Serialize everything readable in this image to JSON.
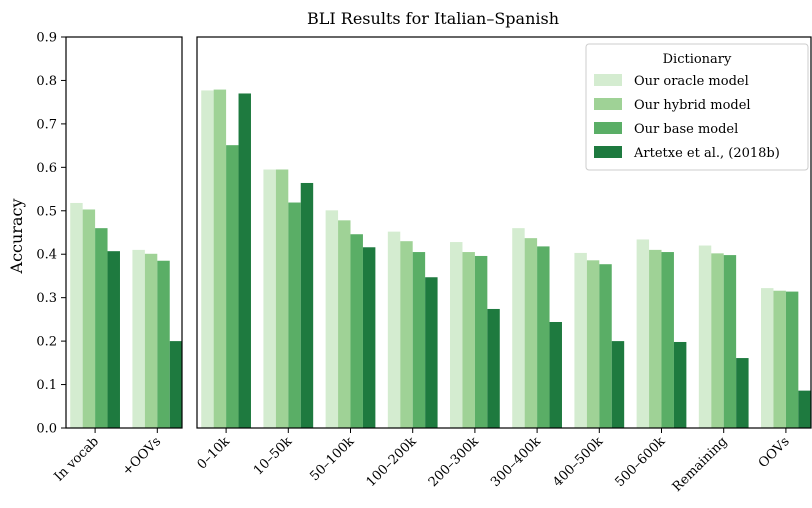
{
  "chart_data": {
    "type": "bar",
    "title": "BLI Results for Italian–Spanish",
    "ylabel": "Accuracy",
    "xlabel": "",
    "ylim": [
      0,
      0.9
    ],
    "yticks": [
      "0.0",
      "0.1",
      "0.2",
      "0.3",
      "0.4",
      "0.5",
      "0.6",
      "0.7",
      "0.8",
      "0.9"
    ],
    "grid": false,
    "legend": {
      "title": "Dictionary",
      "placement": "top-right"
    },
    "panels": [
      {
        "categories": [
          "In vocab",
          "+OOVs"
        ],
        "series": [
          {
            "name": "Our oracle model",
            "color": "#d4ecd0",
            "values": [
              0.518,
              0.41
            ]
          },
          {
            "name": "Our hybrid model",
            "color": "#9fd296",
            "values": [
              0.503,
              0.401
            ]
          },
          {
            "name": "Our base model",
            "color": "#5aae66",
            "values": [
              0.46,
              0.385
            ]
          },
          {
            "name": "Artetxe et al., (2018b)",
            "color": "#1e7a3f",
            "values": [
              0.407,
              0.2
            ]
          }
        ]
      },
      {
        "categories": [
          "0–10k",
          "10–50k",
          "50–100k",
          "100–200k",
          "200–300k",
          "300–400k",
          "400–500k",
          "500–600k",
          "Remaining",
          "OOVs"
        ],
        "series": [
          {
            "name": "Our oracle model",
            "color": "#d4ecd0",
            "values": [
              0.777,
              0.595,
              0.501,
              0.452,
              0.428,
              0.46,
              0.403,
              0.434,
              0.42,
              0.322
            ]
          },
          {
            "name": "Our hybrid model",
            "color": "#9fd296",
            "values": [
              0.779,
              0.595,
              0.478,
              0.43,
              0.405,
              0.437,
              0.386,
              0.41,
              0.402,
              0.316
            ]
          },
          {
            "name": "Our base model",
            "color": "#5aae66",
            "values": [
              0.651,
              0.519,
              0.446,
              0.405,
              0.396,
              0.418,
              0.377,
              0.405,
              0.398,
              0.314
            ]
          },
          {
            "name": "Artetxe et al., (2018b)",
            "color": "#1e7a3f",
            "values": [
              0.77,
              0.564,
              0.416,
              0.347,
              0.274,
              0.244,
              0.2,
              0.198,
              0.161,
              0.086
            ]
          }
        ]
      }
    ]
  }
}
